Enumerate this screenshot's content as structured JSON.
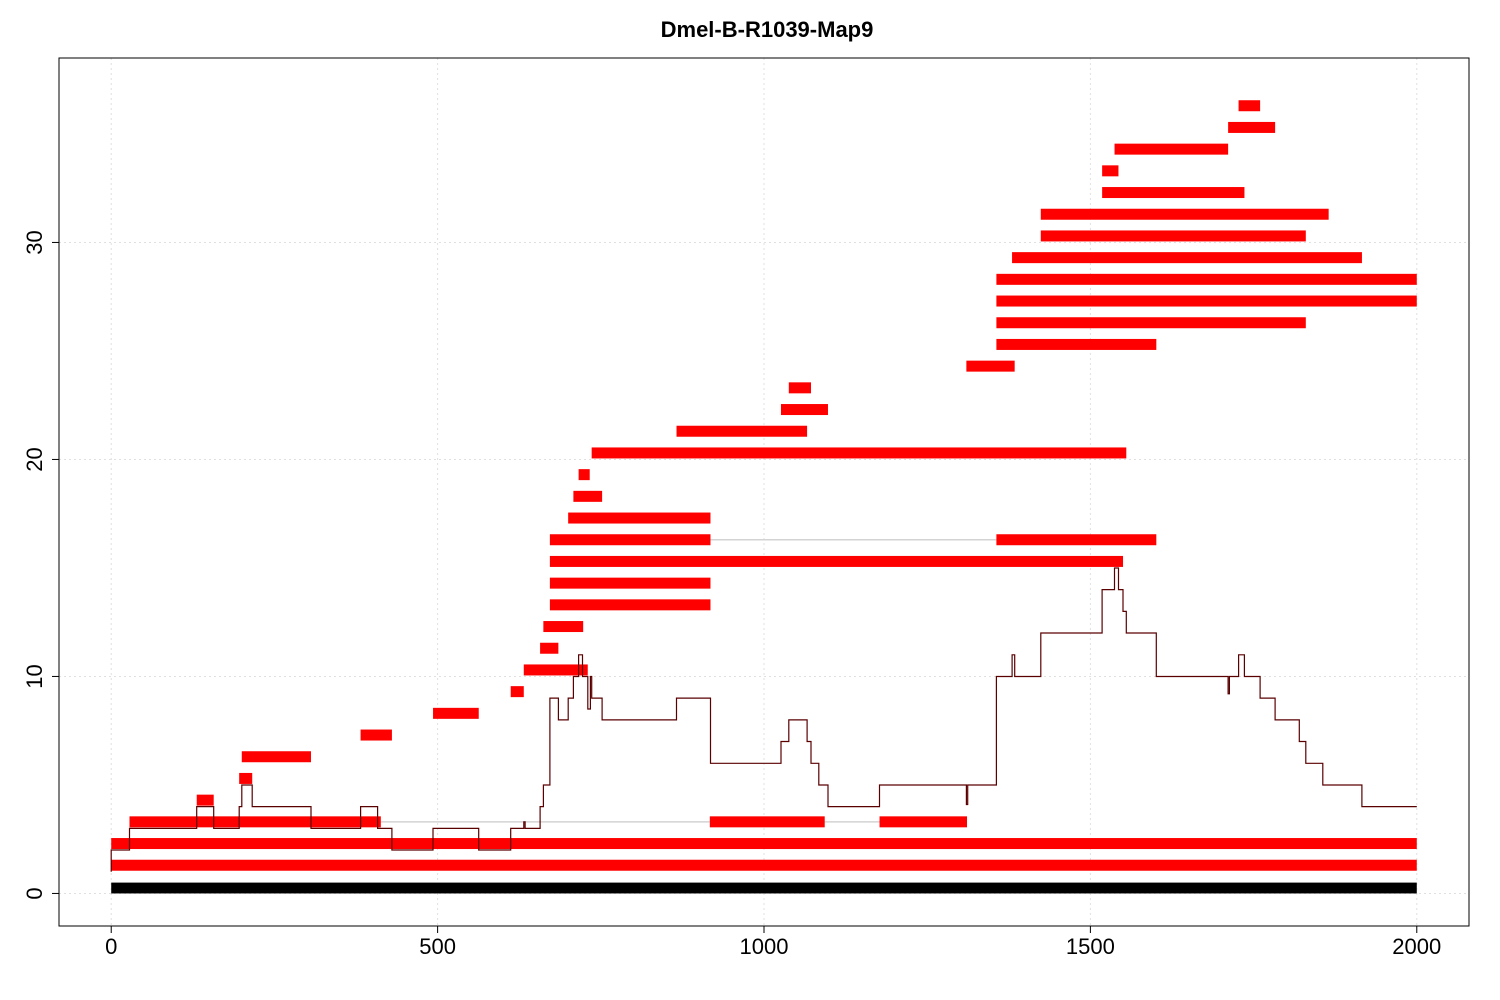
{
  "chart_data": {
    "type": "genome-map",
    "title": "Dmel-B-R1039-Map9",
    "xlabel": "",
    "ylabel": "",
    "xlim": [
      -80,
      2080
    ],
    "ylim": [
      -1.5,
      38.5
    ],
    "x_ticks": [
      0,
      500,
      1000,
      1500,
      2000
    ],
    "y_ticks": [
      0,
      10,
      20,
      30
    ],
    "grid": true,
    "colors": {
      "segment": "#ff0000",
      "base_bar": "#000000",
      "coverage_line": "#5a0000",
      "connector": "#d3d3d3",
      "grid": "#e0e0e0"
    },
    "base_bar": {
      "x0": 0,
      "x1": 2000,
      "y0": 0,
      "y1": 0.5
    },
    "segments": [
      {
        "row": 1.3,
        "x0": 0,
        "x1": 2000
      },
      {
        "row": 2.3,
        "x0": 0,
        "x1": 2000
      },
      {
        "row": 3.3,
        "x0": 28,
        "x1": 413
      },
      {
        "row": 3.3,
        "x0": 917,
        "x1": 1093
      },
      {
        "row": 3.3,
        "x0": 1177,
        "x1": 1311
      },
      {
        "row": 4.3,
        "x0": 131,
        "x1": 157
      },
      {
        "row": 5.3,
        "x0": 196,
        "x1": 216
      },
      {
        "row": 6.3,
        "x0": 200,
        "x1": 306
      },
      {
        "row": 7.3,
        "x0": 382,
        "x1": 430
      },
      {
        "row": 8.3,
        "x0": 493,
        "x1": 563
      },
      {
        "row": 9.3,
        "x0": 612,
        "x1": 632
      },
      {
        "row": 10.3,
        "x0": 632,
        "x1": 730
      },
      {
        "row": 11.3,
        "x0": 657,
        "x1": 685
      },
      {
        "row": 12.3,
        "x0": 662,
        "x1": 723
      },
      {
        "row": 13.3,
        "x0": 672,
        "x1": 918
      },
      {
        "row": 14.3,
        "x0": 672,
        "x1": 918
      },
      {
        "row": 15.3,
        "x0": 672,
        "x1": 1550
      },
      {
        "row": 16.3,
        "x0": 672,
        "x1": 918
      },
      {
        "row": 16.3,
        "x0": 1356,
        "x1": 1601
      },
      {
        "row": 17.3,
        "x0": 700,
        "x1": 918
      },
      {
        "row": 18.3,
        "x0": 708,
        "x1": 752
      },
      {
        "row": 19.3,
        "x0": 716,
        "x1": 733
      },
      {
        "row": 20.3,
        "x0": 736,
        "x1": 1555
      },
      {
        "row": 21.3,
        "x0": 866,
        "x1": 1066
      },
      {
        "row": 22.3,
        "x0": 1026,
        "x1": 1098
      },
      {
        "row": 23.3,
        "x0": 1038,
        "x1": 1072
      },
      {
        "row": 24.3,
        "x0": 1310,
        "x1": 1384
      },
      {
        "row": 25.3,
        "x0": 1356,
        "x1": 1601
      },
      {
        "row": 26.3,
        "x0": 1356,
        "x1": 1830
      },
      {
        "row": 27.3,
        "x0": 1356,
        "x1": 2000
      },
      {
        "row": 28.3,
        "x0": 1356,
        "x1": 2000
      },
      {
        "row": 29.3,
        "x0": 1380,
        "x1": 1916
      },
      {
        "row": 30.3,
        "x0": 1424,
        "x1": 1830
      },
      {
        "row": 31.3,
        "x0": 1424,
        "x1": 1865
      },
      {
        "row": 32.3,
        "x0": 1518,
        "x1": 1736
      },
      {
        "row": 33.3,
        "x0": 1518,
        "x1": 1543
      },
      {
        "row": 34.3,
        "x0": 1537,
        "x1": 1711
      },
      {
        "row": 35.3,
        "x0": 1711,
        "x1": 1783
      },
      {
        "row": 36.3,
        "x0": 1727,
        "x1": 1760
      }
    ],
    "connectors": [
      {
        "row": 3.3,
        "x0": 413,
        "x1": 917
      },
      {
        "row": 3.3,
        "x0": 1093,
        "x1": 1177
      },
      {
        "row": 16.3,
        "x0": 918,
        "x1": 1356
      }
    ],
    "coverage": [
      [
        0,
        1
      ],
      [
        0,
        2
      ],
      [
        28,
        2
      ],
      [
        28,
        3
      ],
      [
        131,
        3
      ],
      [
        131,
        4
      ],
      [
        157,
        4
      ],
      [
        157,
        3
      ],
      [
        196,
        3
      ],
      [
        196,
        4
      ],
      [
        200,
        4
      ],
      [
        200,
        5
      ],
      [
        210,
        5
      ],
      [
        216,
        5
      ],
      [
        216,
        4
      ],
      [
        306,
        4
      ],
      [
        306,
        3
      ],
      [
        382,
        3
      ],
      [
        382,
        4
      ],
      [
        408,
        4
      ],
      [
        408,
        3
      ],
      [
        430,
        3
      ],
      [
        430,
        2
      ],
      [
        493,
        2
      ],
      [
        493,
        3
      ],
      [
        563,
        3
      ],
      [
        563,
        2
      ],
      [
        612,
        2
      ],
      [
        612,
        3
      ],
      [
        632,
        3
      ],
      [
        632,
        3.3
      ],
      [
        634,
        3.3
      ],
      [
        634,
        3
      ],
      [
        657,
        3
      ],
      [
        657,
        4
      ],
      [
        662,
        4
      ],
      [
        662,
        5
      ],
      [
        672,
        5
      ],
      [
        672,
        9
      ],
      [
        685,
        9
      ],
      [
        685,
        8
      ],
      [
        700,
        8
      ],
      [
        700,
        9
      ],
      [
        708,
        9
      ],
      [
        708,
        10
      ],
      [
        716,
        10
      ],
      [
        716,
        11
      ],
      [
        722,
        11
      ],
      [
        722,
        10
      ],
      [
        730,
        10
      ],
      [
        730,
        8.5
      ],
      [
        734,
        8.5
      ],
      [
        734,
        10
      ],
      [
        736,
        10
      ],
      [
        736,
        9
      ],
      [
        752,
        9
      ],
      [
        752,
        8
      ],
      [
        866,
        8
      ],
      [
        866,
        9
      ],
      [
        918,
        9
      ],
      [
        918,
        6
      ],
      [
        1026,
        6
      ],
      [
        1026,
        7
      ],
      [
        1038,
        7
      ],
      [
        1038,
        8
      ],
      [
        1066,
        8
      ],
      [
        1066,
        7
      ],
      [
        1072,
        7
      ],
      [
        1072,
        6
      ],
      [
        1084,
        6
      ],
      [
        1084,
        5
      ],
      [
        1098,
        5
      ],
      [
        1098,
        4
      ],
      [
        1177,
        4
      ],
      [
        1177,
        5
      ],
      [
        1310,
        5
      ],
      [
        1310,
        4.1
      ],
      [
        1312,
        4.1
      ],
      [
        1312,
        5
      ],
      [
        1356,
        5
      ],
      [
        1356,
        10
      ],
      [
        1380,
        10
      ],
      [
        1380,
        11
      ],
      [
        1384,
        11
      ],
      [
        1384,
        10
      ],
      [
        1424,
        10
      ],
      [
        1424,
        12
      ],
      [
        1518,
        12
      ],
      [
        1518,
        14
      ],
      [
        1537,
        14
      ],
      [
        1537,
        15
      ],
      [
        1543,
        15
      ],
      [
        1543,
        14
      ],
      [
        1550,
        14
      ],
      [
        1550,
        13
      ],
      [
        1555,
        13
      ],
      [
        1555,
        12
      ],
      [
        1601,
        12
      ],
      [
        1601,
        10
      ],
      [
        1711,
        10
      ],
      [
        1711,
        9.2
      ],
      [
        1713,
        9.2
      ],
      [
        1713,
        10
      ],
      [
        1727,
        10
      ],
      [
        1727,
        11
      ],
      [
        1736,
        11
      ],
      [
        1736,
        10
      ],
      [
        1760,
        10
      ],
      [
        1760,
        9
      ],
      [
        1783,
        9
      ],
      [
        1783,
        8
      ],
      [
        1820,
        8
      ],
      [
        1820,
        7
      ],
      [
        1830,
        7
      ],
      [
        1830,
        6
      ],
      [
        1856,
        6
      ],
      [
        1856,
        5
      ],
      [
        1916,
        5
      ],
      [
        1916,
        4
      ],
      [
        2000,
        4
      ]
    ]
  }
}
